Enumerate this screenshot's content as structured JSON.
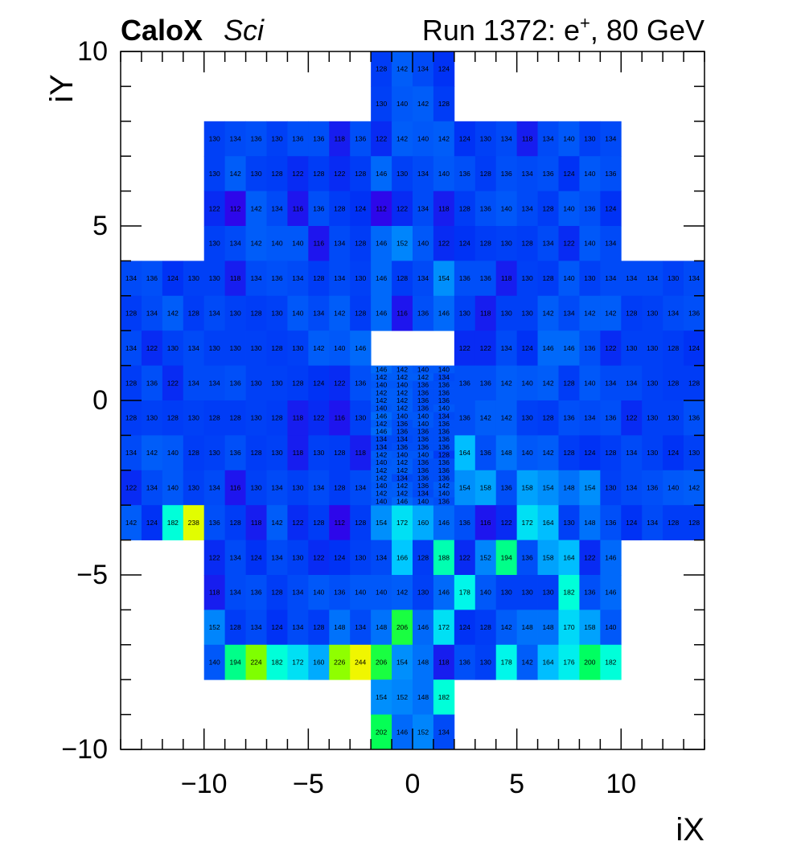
{
  "header": {
    "experiment_bold": "CaloX",
    "experiment_italic": "Sci",
    "run_text_prefix": "Run 1372: e",
    "run_text_sup": "+",
    "run_text_suffix": ", 80 GeV"
  },
  "chart_data": {
    "type": "heatmap",
    "title": "",
    "xlabel": "iX",
    "ylabel": "iY",
    "xlim": [
      -14,
      14
    ],
    "ylim": [
      -10,
      10
    ],
    "x_ticks": [
      -10,
      -5,
      0,
      5,
      10
    ],
    "y_ticks": [
      -10,
      -5,
      0,
      5,
      10
    ],
    "x_tick_labels": [
      "−10",
      "−5",
      "0",
      "5",
      "10"
    ],
    "y_tick_labels": [
      "−10",
      "−5",
      "0",
      "5",
      "10"
    ],
    "grid": false,
    "colormap": "ROOT kBird-like (blue → cyan → green → yellow)",
    "color_range": [
      110,
      250
    ],
    "colors": {
      "low": "#3500e8",
      "mid_low": "#0050f0",
      "mid": "#00e8ff",
      "mid_high": "#00ff60",
      "high": "#f0ff00"
    },
    "rows": [
      {
        "iy": 9,
        "x_start": -2,
        "values": [
          128,
          142,
          134,
          124
        ]
      },
      {
        "iy": 8,
        "x_start": -2,
        "values": [
          130,
          140,
          142,
          128
        ]
      },
      {
        "iy": 7,
        "x_start": -10,
        "values": [
          130,
          134,
          136,
          130,
          136,
          136,
          118,
          136,
          122,
          142,
          140,
          142,
          124,
          130,
          134,
          118,
          134,
          140,
          130,
          134
        ]
      },
      {
        "iy": 6,
        "x_start": -10,
        "values": [
          130,
          142,
          130,
          128,
          122,
          128,
          122,
          128,
          146,
          130,
          134,
          140,
          136,
          128,
          136,
          134,
          136,
          124,
          140,
          136
        ]
      },
      {
        "iy": 5,
        "x_start": -10,
        "values": [
          122,
          112,
          142,
          134,
          116,
          136,
          128,
          124,
          112,
          122,
          134,
          118,
          128,
          136,
          140,
          134,
          128,
          140,
          136,
          124
        ]
      },
      {
        "iy": 4,
        "x_start": -10,
        "values": [
          130,
          134,
          142,
          140,
          140,
          116,
          134,
          128,
          146,
          152,
          140,
          122,
          124,
          128,
          130,
          128,
          134,
          122,
          140,
          134
        ]
      },
      {
        "iy": 3,
        "x_start": -14,
        "values": [
          134,
          136,
          124,
          130,
          130,
          118,
          134,
          136,
          134,
          128,
          134,
          130,
          146,
          128,
          134,
          154,
          136,
          136,
          118,
          130,
          128,
          140,
          130,
          134,
          134,
          134,
          130,
          134
        ]
      },
      {
        "iy": 2,
        "x_start": -14,
        "values": [
          128,
          134,
          142,
          128,
          134,
          130,
          128,
          130,
          140,
          134,
          142,
          128,
          146,
          116,
          136,
          146,
          130,
          118,
          130,
          130,
          142,
          134,
          142,
          142,
          128,
          130,
          134,
          136
        ]
      },
      {
        "iy": 1,
        "x_start": -14,
        "values": [
          134,
          122,
          130,
          134,
          130,
          130,
          130,
          128,
          130,
          142,
          140,
          146,
          null,
          null,
          null,
          null,
          122,
          122,
          134,
          124,
          146,
          146,
          136,
          122,
          130,
          130,
          128,
          124
        ]
      },
      {
        "iy": 0,
        "x_start": -14,
        "values": [
          128,
          136,
          122,
          134,
          134,
          136,
          130,
          130,
          128,
          124,
          122,
          136,
          null,
          null,
          null,
          null,
          136,
          136,
          142,
          140,
          142,
          128,
          140,
          134,
          134,
          130,
          128,
          128
        ]
      },
      {
        "iy": -1,
        "x_start": -14,
        "values": [
          128,
          130,
          128,
          130,
          128,
          128,
          130,
          128,
          118,
          122,
          116,
          130,
          null,
          null,
          null,
          null,
          136,
          142,
          142,
          130,
          128,
          136,
          134,
          136,
          122,
          130,
          130,
          136
        ]
      },
      {
        "iy": -2,
        "x_start": -14,
        "values": [
          134,
          142,
          140,
          128,
          130,
          136,
          128,
          130,
          118,
          130,
          128,
          118,
          null,
          null,
          null,
          null,
          164,
          136,
          148,
          140,
          142,
          128,
          124,
          128,
          134,
          130,
          124,
          130
        ]
      },
      {
        "iy": -3,
        "x_start": -14,
        "values": [
          122,
          134,
          140,
          130,
          134,
          116,
          130,
          134,
          130,
          134,
          128,
          134,
          122,
          134,
          148,
          176,
          154,
          158,
          136,
          158,
          154,
          148,
          154,
          130,
          134,
          136,
          140,
          142
        ]
      },
      {
        "iy": -4,
        "x_start": -14,
        "values": [
          142,
          124,
          182,
          238,
          136,
          128,
          118,
          142,
          122,
          128,
          112,
          128,
          154,
          172,
          160,
          146,
          136,
          116,
          122,
          172,
          164,
          130,
          148,
          136,
          124,
          134,
          128,
          128
        ]
      },
      {
        "iy": -5,
        "x_start": -10,
        "values": [
          122,
          134,
          124,
          134,
          130,
          122,
          124,
          130,
          134,
          166,
          128,
          188,
          122,
          152,
          194,
          136,
          158,
          164,
          122,
          146
        ]
      },
      {
        "iy": -6,
        "x_start": -10,
        "values": [
          118,
          134,
          136,
          128,
          134,
          140,
          136,
          140,
          140,
          142,
          130,
          146,
          178,
          140,
          130,
          130,
          130,
          182,
          136,
          146
        ]
      },
      {
        "iy": -7,
        "x_start": -10,
        "values": [
          152,
          128,
          134,
          124,
          134,
          128,
          148,
          134,
          148,
          206,
          146,
          172,
          124,
          128,
          142,
          148,
          148,
          170,
          158,
          140
        ]
      },
      {
        "iy": -8,
        "x_start": -10,
        "values": [
          140,
          194,
          224,
          182,
          172,
          160,
          226,
          244,
          206,
          154,
          148,
          118,
          136,
          130,
          178,
          142,
          164,
          176,
          200,
          182
        ]
      },
      {
        "iy": -9,
        "x_start": -2,
        "values": [
          154,
          152,
          148,
          182
        ]
      },
      {
        "iy": -10,
        "x_start": -2,
        "values": [
          202,
          146,
          152,
          134
        ]
      }
    ],
    "fine_region": {
      "x_range": [
        -2,
        2
      ],
      "y_range": [
        -3,
        1
      ],
      "subdivision": "4 columns x 4 sub-rows per unit row (0.25 in iY)",
      "rows_top_to_bottom": [
        [
          146,
          142,
          140,
          140
        ],
        [
          142,
          142,
          142,
          134
        ],
        [
          140,
          140,
          136,
          136
        ],
        [
          142,
          142,
          136,
          136
        ],
        [
          142,
          142,
          136,
          136
        ],
        [
          140,
          142,
          136,
          140
        ],
        [
          146,
          140,
          140,
          134
        ],
        [
          142,
          136,
          140,
          136
        ],
        [
          146,
          136,
          136,
          136
        ],
        [
          134,
          134,
          136,
          136
        ],
        [
          134,
          136,
          136,
          136
        ],
        [
          142,
          140,
          140,
          128
        ],
        [
          140,
          142,
          136,
          136
        ],
        [
          142,
          142,
          136,
          136
        ],
        [
          142,
          134,
          136,
          136
        ],
        [
          140,
          142,
          136,
          142
        ],
        [
          142,
          142,
          134,
          140
        ],
        [
          140,
          146,
          140,
          136
        ]
      ]
    }
  }
}
